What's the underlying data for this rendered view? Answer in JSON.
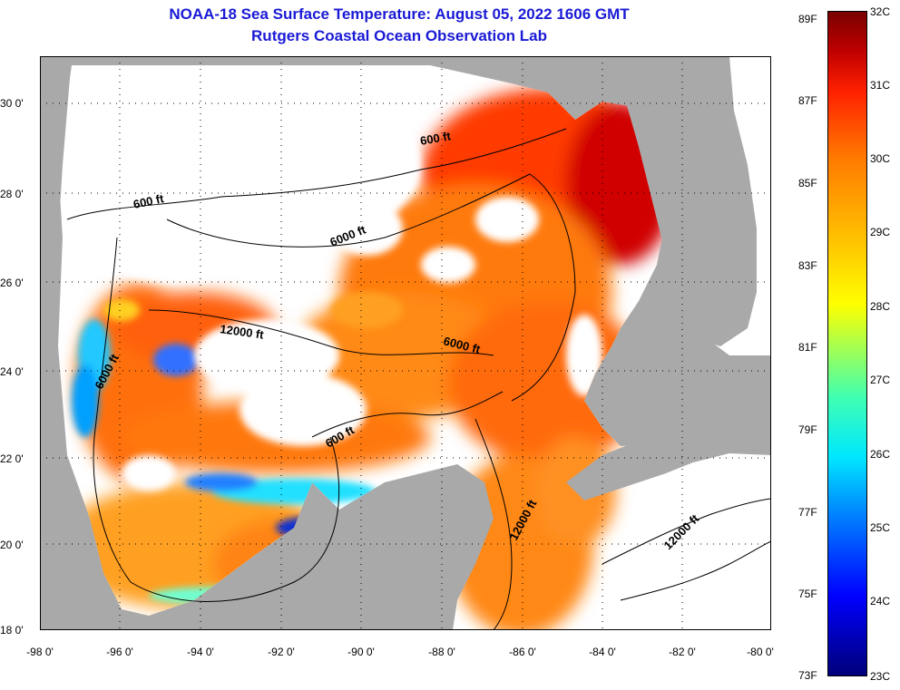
{
  "title": {
    "line1": "NOAA-18 Sea Surface Temperature:  August 05, 2022 1606 GMT",
    "line2": "Rutgers Coastal Ocean Observation Lab"
  },
  "map": {
    "lat_labels": [
      "30 0'",
      "28 0'",
      "26 0'",
      "24 0'",
      "22 0'",
      "20 0'",
      "18 0'"
    ],
    "lon_labels": [
      "-98 0'",
      "-96 0'",
      "-94 0'",
      "-92 0'",
      "-90 0'",
      "-88 0'",
      "-86 0'",
      "-84 0'",
      "-82 0'",
      "-80 0'"
    ],
    "contour_labels": [
      {
        "text": "600 ft",
        "rotate": -12
      },
      {
        "text": "600 ft",
        "rotate": -10
      },
      {
        "text": "6000 ft",
        "rotate": -22
      },
      {
        "text": "12000 ft",
        "rotate": 8
      },
      {
        "text": "6000 ft",
        "rotate": 14
      },
      {
        "text": "6000 ft",
        "rotate": -62
      },
      {
        "text": "600 ft",
        "rotate": -30
      },
      {
        "text": "12000 ft",
        "rotate": -62
      },
      {
        "text": "12000 ft",
        "rotate": -45
      }
    ],
    "colors": {
      "land": "#a9a9a9",
      "cloud": "#ffffff",
      "grid": "#000000"
    }
  },
  "colorbar": {
    "f_labels": [
      "89F",
      "87F",
      "85F",
      "83F",
      "81F",
      "79F",
      "77F",
      "75F",
      "73F"
    ],
    "c_labels": [
      "32C",
      "31C",
      "30C",
      "29C",
      "28C",
      "27C",
      "26C",
      "25C",
      "24C",
      "23C"
    ]
  }
}
